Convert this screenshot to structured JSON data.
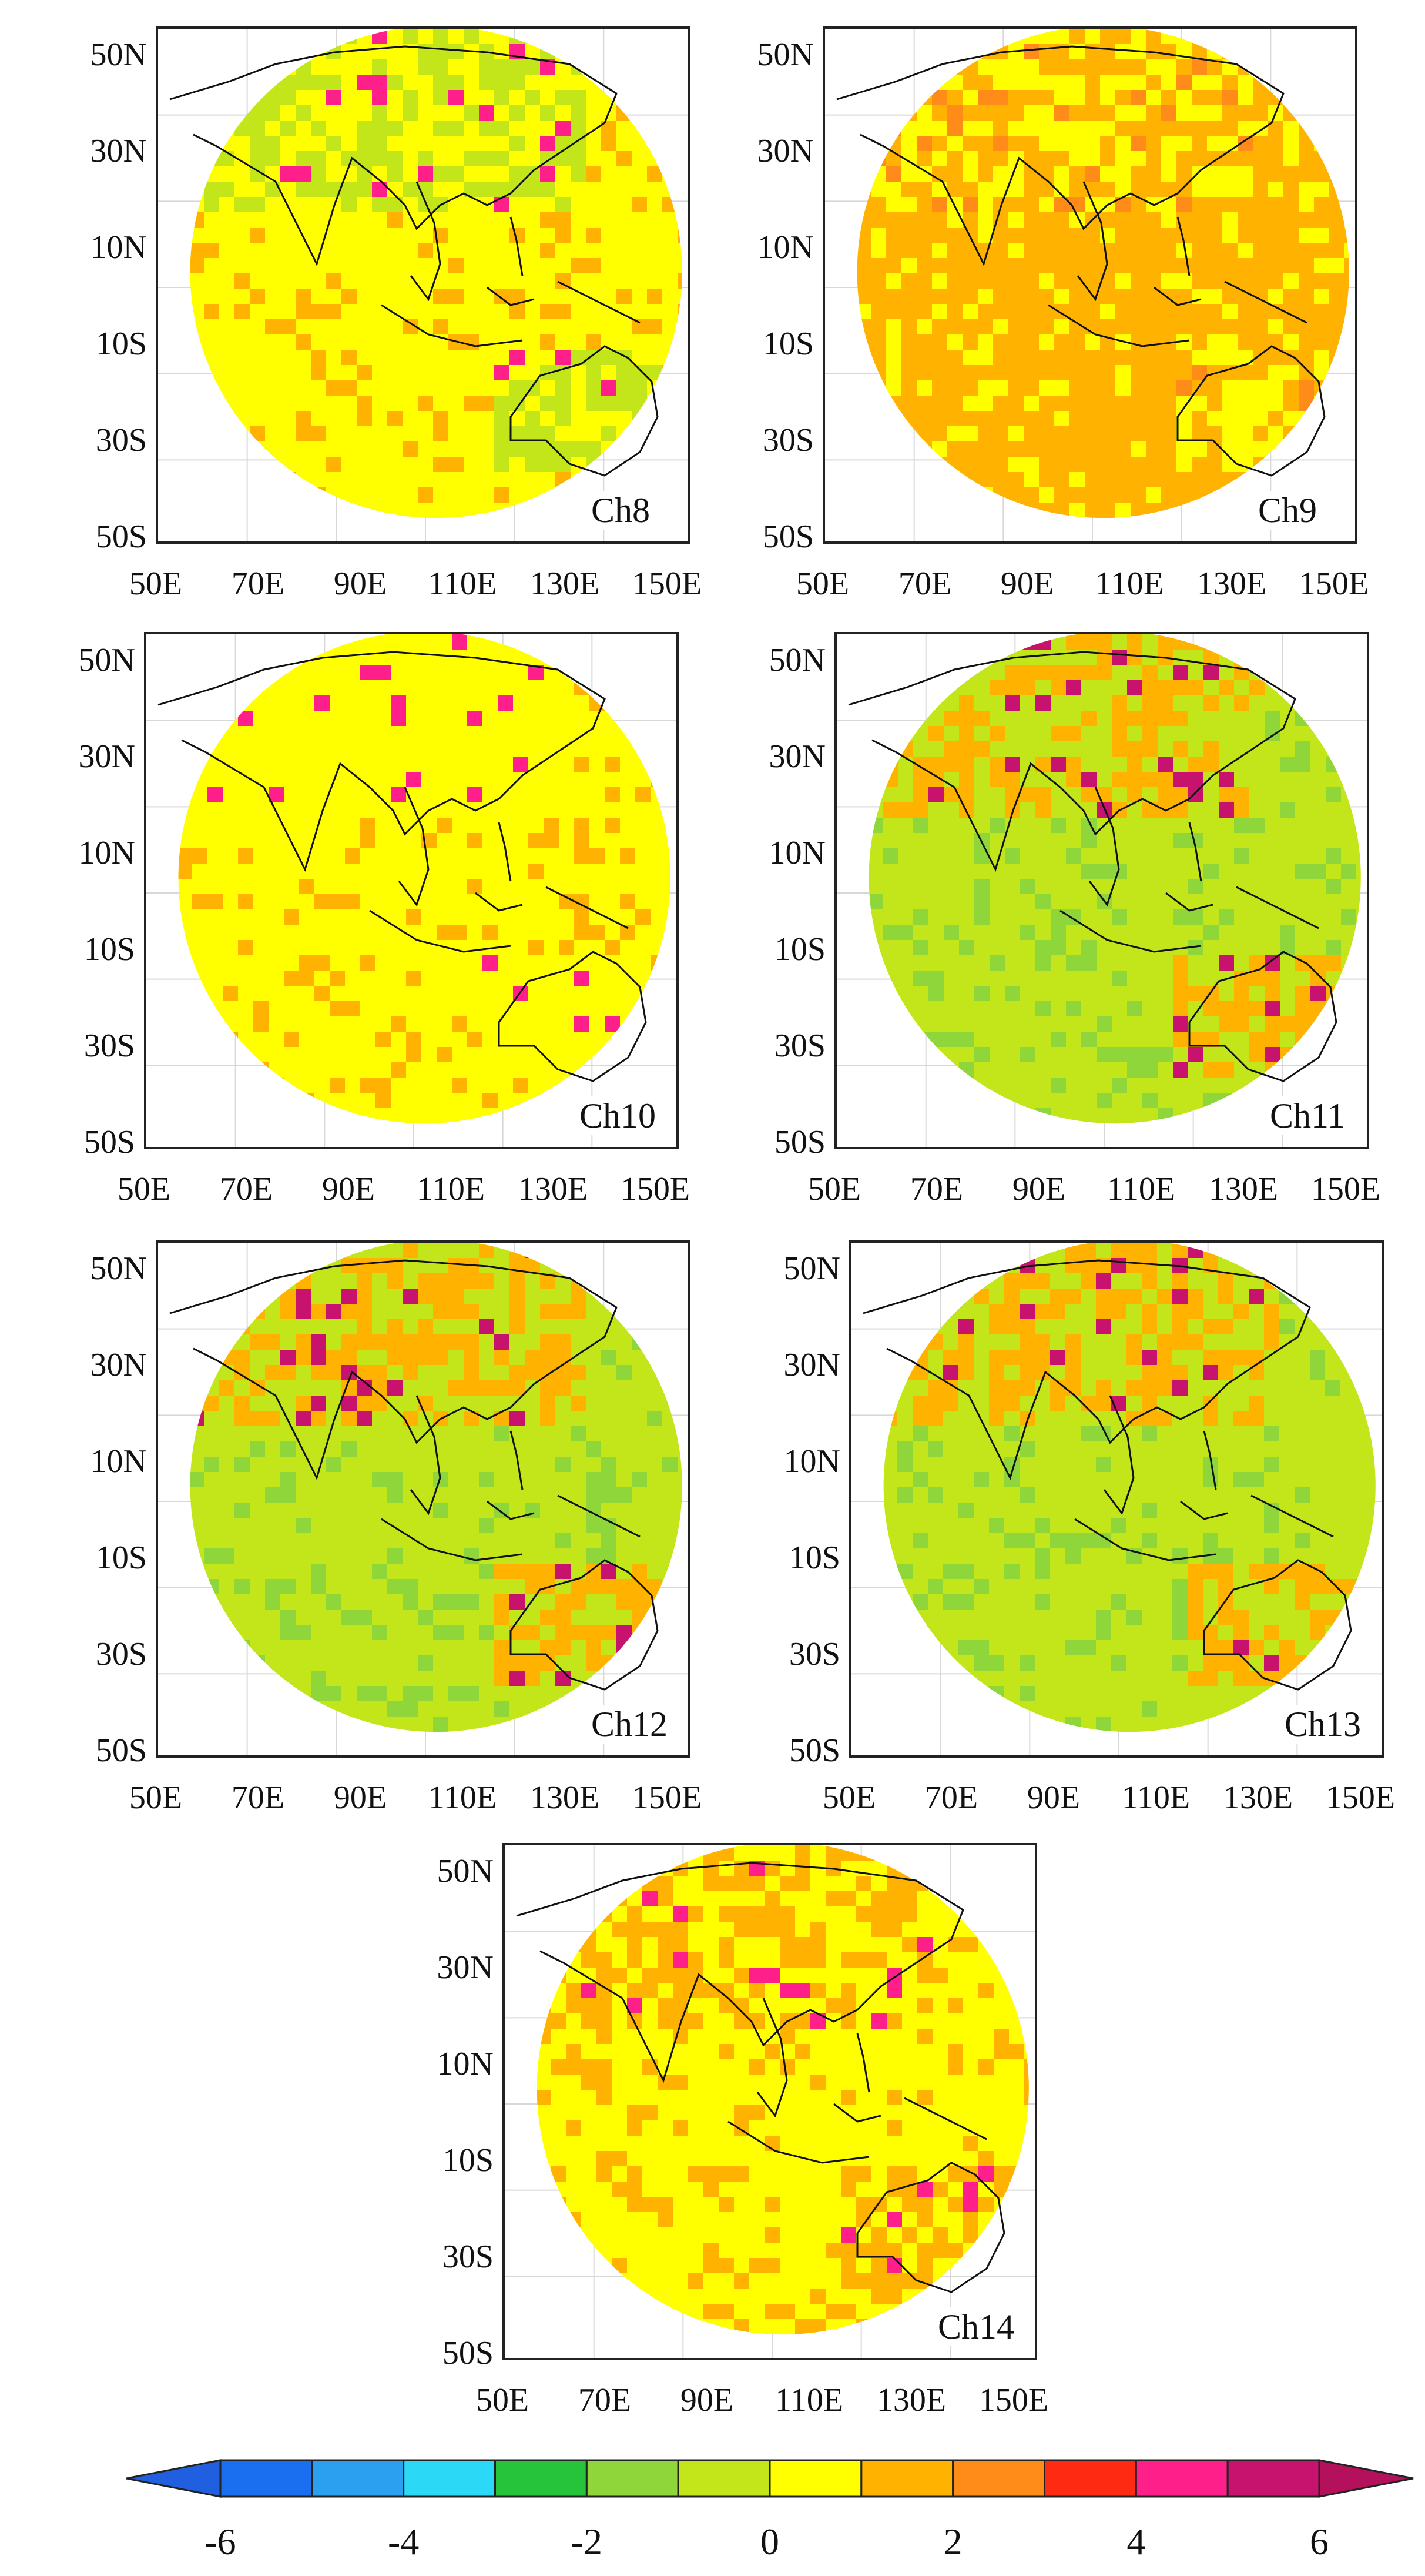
{
  "colorbar": {
    "min": -6,
    "max": 6,
    "step": 1,
    "colors": [
      "#1a6ef0",
      "#2b9ff0",
      "#2bd8f5",
      "#26c43a",
      "#8fd63a",
      "#c3e61a",
      "#ffff00",
      "#ffb300",
      "#ff8c19",
      "#ff2a12",
      "#ff1f8a",
      "#c8136e"
    ],
    "under_color": "#1f5fe0",
    "over_color": "#b5105c",
    "tick_labels": [
      "-6",
      "-4",
      "-2",
      "0",
      "2",
      "4",
      "6"
    ]
  },
  "axes": {
    "y_ticks": [
      "50N",
      "30N",
      "10N",
      "10S",
      "30S",
      "50S"
    ],
    "x_ticks": [
      "50E",
      "70E",
      "90E",
      "110E",
      "130E",
      "150E"
    ]
  },
  "panels": [
    {
      "id": "ch8",
      "label": "Ch8",
      "dominant": "#ffff00",
      "secondary": "#ffb300",
      "land": "#c3e61a",
      "hot": "#ff1f8a"
    },
    {
      "id": "ch9",
      "label": "Ch9",
      "dominant": "#ffb300",
      "secondary": "#ffff00",
      "land": "#ffff00",
      "hot": "#ff8c19"
    },
    {
      "id": "ch10",
      "label": "Ch10",
      "dominant": "#ffff00",
      "secondary": "#ffb300",
      "land": "#ffff00",
      "hot": "#ff1f8a"
    },
    {
      "id": "ch11",
      "label": "Ch11",
      "dominant": "#c3e61a",
      "secondary": "#8fd63a",
      "land": "#ffb300",
      "hot": "#c8136e"
    },
    {
      "id": "ch12",
      "label": "Ch12",
      "dominant": "#c3e61a",
      "secondary": "#8fd63a",
      "land": "#ffb300",
      "hot": "#c8136e"
    },
    {
      "id": "ch13",
      "label": "Ch13",
      "dominant": "#c3e61a",
      "secondary": "#8fd63a",
      "land": "#ffb300",
      "hot": "#c8136e"
    },
    {
      "id": "ch14",
      "label": "Ch14",
      "dominant": "#ffff00",
      "secondary": "#ffb300",
      "land": "#ffb300",
      "hot": "#ff1f8a"
    }
  ]
}
